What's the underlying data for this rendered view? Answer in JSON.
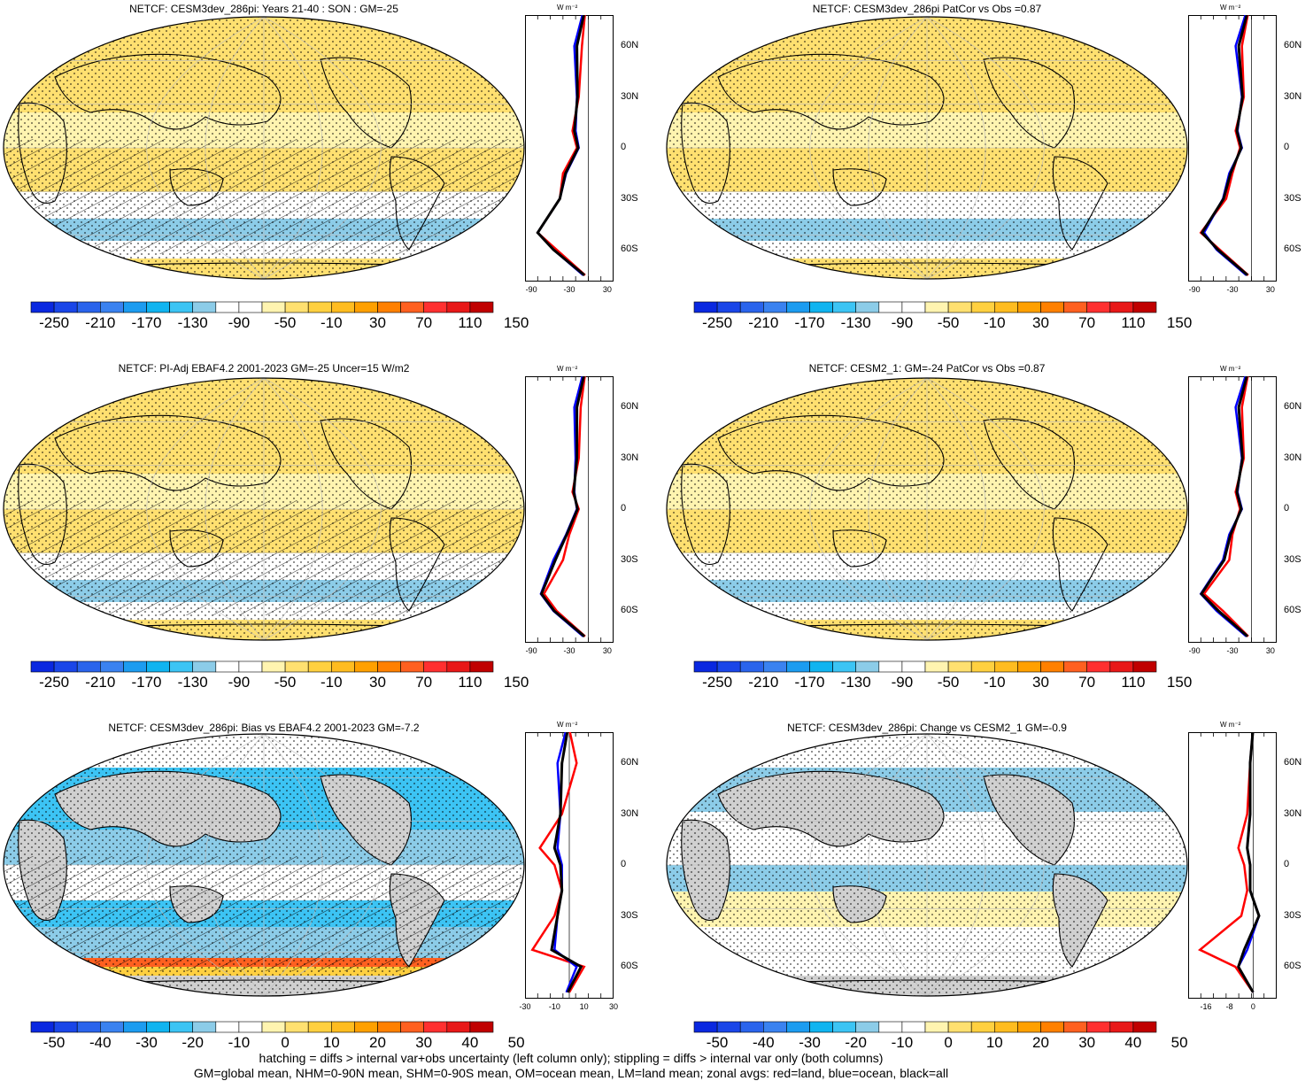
{
  "panels": [
    {
      "title": "NETCF: CESM3dev_286pi: Years 21-40 : SON : GM=-25",
      "cbar_labels": [
        "-250",
        "-210",
        "-170",
        "-130",
        "-90",
        "-50",
        "-10",
        "30",
        "70",
        "110",
        "150"
      ],
      "cbar_kind": "full",
      "zonal_x_labels": [
        "-90",
        "-30",
        "30"
      ],
      "zonal_unit": "W m⁻²",
      "lat_labels": [
        "60N",
        "30N",
        "0",
        "30S",
        "60S"
      ],
      "variant": "mean",
      "hatch": true
    },
    {
      "title": "NETCF: CESM3dev_286pi PatCor vs Obs =0.87",
      "cbar_labels": [
        "-250",
        "-210",
        "-170",
        "-130",
        "-90",
        "-50",
        "-10",
        "30",
        "70",
        "110",
        "150"
      ],
      "cbar_kind": "full",
      "zonal_x_labels": [
        "-90",
        "-30",
        "30"
      ],
      "zonal_unit": "W m⁻²",
      "lat_labels": [
        "60N",
        "30N",
        "0",
        "30S",
        "60S"
      ],
      "variant": "mean",
      "hatch": false
    },
    {
      "title": "NETCF: PI-Adj EBAF4.2 2001-2023 GM=-25 Uncer=15 W/m2",
      "cbar_labels": [
        "-250",
        "-210",
        "-170",
        "-130",
        "-90",
        "-50",
        "-10",
        "30",
        "70",
        "110",
        "150"
      ],
      "cbar_kind": "full",
      "zonal_x_labels": [
        "-90",
        "-30",
        "30"
      ],
      "zonal_unit": "W m⁻²",
      "lat_labels": [
        "60N",
        "30N",
        "0",
        "30S",
        "60S"
      ],
      "variant": "mean",
      "hatch": true
    },
    {
      "title": "NETCF: CESM2_1: GM=-24 PatCor vs Obs =0.87",
      "cbar_labels": [
        "-250",
        "-210",
        "-170",
        "-130",
        "-90",
        "-50",
        "-10",
        "30",
        "70",
        "110",
        "150"
      ],
      "cbar_kind": "full",
      "zonal_x_labels": [
        "-90",
        "-30",
        "30"
      ],
      "zonal_unit": "W m⁻²",
      "lat_labels": [
        "60N",
        "30N",
        "0",
        "30S",
        "60S"
      ],
      "variant": "mean",
      "hatch": false
    },
    {
      "title": "NETCF: CESM3dev_286pi: Bias vs EBAF4.2 2001-2023  GM=-7.2",
      "cbar_labels": [
        "-50",
        "-40",
        "-30",
        "-20",
        "-10",
        "0",
        "10",
        "20",
        "30",
        "40",
        "50"
      ],
      "cbar_kind": "diff",
      "zonal_x_labels": [
        "-30",
        "-10",
        "10",
        "30"
      ],
      "zonal_unit": "W m⁻²",
      "lat_labels": [
        "60N",
        "30N",
        "0",
        "30S",
        "60S"
      ],
      "variant": "bias",
      "hatch": true
    },
    {
      "title": "NETCF: CESM3dev_286pi: Change vs CESM2_1 GM=-0.9",
      "cbar_labels": [
        "-50",
        "-40",
        "-30",
        "-20",
        "-10",
        "0",
        "10",
        "20",
        "30",
        "40",
        "50"
      ],
      "cbar_kind": "diff",
      "zonal_x_labels": [
        "-16",
        "-8",
        "0"
      ],
      "zonal_unit": "W m⁻²",
      "lat_labels": [
        "60N",
        "30N",
        "0",
        "30S",
        "60S"
      ],
      "variant": "change",
      "hatch": false
    }
  ],
  "colors": {
    "full": [
      "#0a28e0",
      "#1a46e8",
      "#2a64ec",
      "#3a82f0",
      "#1c9cf0",
      "#10b4f0",
      "#3cc4f4",
      "#8ccce8",
      "#ffffff",
      "#ffffff",
      "#fff4b0",
      "#ffe070",
      "#ffd040",
      "#ffbc20",
      "#ffa000",
      "#ff8000",
      "#ff6020",
      "#ff3030",
      "#e81818",
      "#c00000"
    ],
    "diff": [
      "#0a28e0",
      "#1a46e8",
      "#2a64ec",
      "#3a82f0",
      "#1c9cf0",
      "#10b4f0",
      "#3cc4f4",
      "#8ccce8",
      "#ffffff",
      "#ffffff",
      "#fff4b0",
      "#ffe070",
      "#ffd040",
      "#ffbc20",
      "#ffa000",
      "#ff8000",
      "#ff6020",
      "#ff3030",
      "#e81818",
      "#c00000"
    ],
    "land_grey": "#d0d0d0",
    "zonal_red": "#ff0000",
    "zonal_blue": "#0000ff",
    "zonal_black": "#000000"
  },
  "chart_data": [
    {
      "type": "heatmap",
      "title": "NETCF: CESM3dev_286pi: Years 21-40 : SON : GM=-25",
      "colorbar": [
        -250,
        -210,
        -170,
        -130,
        -90,
        -50,
        -10,
        30,
        70,
        110,
        150
      ],
      "zonal": {
        "lat": [
          80,
          60,
          30,
          10,
          0,
          -15,
          -30,
          -50,
          -60,
          -75
        ],
        "land": [
          -5,
          -10,
          -15,
          -25,
          -18,
          -40,
          -45,
          -80,
          -50,
          -5
        ],
        "ocean": [
          -8,
          -22,
          -18,
          -20,
          -15,
          -35,
          -45,
          -80,
          -55,
          -8
        ],
        "all": [
          -6,
          -18,
          -17,
          -22,
          -16,
          -36,
          -45,
          -80,
          -55,
          -6
        ]
      }
    },
    {
      "type": "heatmap",
      "title": "NETCF: CESM3dev_286pi PatCor vs Obs =0.87",
      "colorbar": [
        -250,
        -210,
        -170,
        -130,
        -90,
        -50,
        -10,
        30,
        70,
        110,
        150
      ],
      "zonal": {
        "lat": [
          80,
          60,
          30,
          10,
          0,
          -15,
          -30,
          -50,
          -60,
          -75
        ],
        "land": [
          -5,
          -15,
          -12,
          -25,
          -18,
          -30,
          -40,
          -80,
          -50,
          -5
        ],
        "ocean": [
          -8,
          -25,
          -15,
          -22,
          -15,
          -35,
          -45,
          -75,
          -55,
          -8
        ],
        "all": [
          -6,
          -20,
          -14,
          -23,
          -16,
          -33,
          -44,
          -78,
          -53,
          -6
        ]
      }
    },
    {
      "type": "heatmap",
      "title": "NETCF: PI-Adj EBAF4.2 2001-2023 GM=-25 Uncer=15 W/m2",
      "colorbar": [
        -250,
        -210,
        -170,
        -130,
        -90,
        -50,
        -10,
        30,
        70,
        110,
        150
      ],
      "zonal": {
        "lat": [
          80,
          60,
          30,
          10,
          0,
          -15,
          -30,
          -50,
          -60,
          -75
        ],
        "land": [
          -5,
          -12,
          -15,
          -25,
          -15,
          -30,
          -40,
          -70,
          -50,
          -5
        ],
        "ocean": [
          -8,
          -22,
          -20,
          -22,
          -18,
          -35,
          -55,
          -75,
          -55,
          -8
        ],
        "all": [
          -6,
          -18,
          -18,
          -23,
          -17,
          -34,
          -52,
          -74,
          -54,
          -6
        ]
      }
    },
    {
      "type": "heatmap",
      "title": "NETCF: CESM2_1: GM=-24 PatCor vs Obs =0.87",
      "colorbar": [
        -250,
        -210,
        -170,
        -130,
        -90,
        -50,
        -10,
        30,
        70,
        110,
        150
      ],
      "zonal": {
        "lat": [
          80,
          60,
          30,
          10,
          0,
          -15,
          -30,
          -50,
          -60,
          -75
        ],
        "land": [
          -5,
          -15,
          -12,
          -25,
          -18,
          -30,
          -35,
          -75,
          -45,
          -5
        ],
        "ocean": [
          -8,
          -25,
          -15,
          -22,
          -15,
          -35,
          -45,
          -80,
          -55,
          -8
        ],
        "all": [
          -6,
          -20,
          -14,
          -23,
          -16,
          -33,
          -43,
          -79,
          -52,
          -6
        ]
      }
    },
    {
      "type": "heatmap",
      "title": "NETCF: CESM3dev_286pi: Bias vs EBAF4.2 2001-2023  GM=-7.2",
      "colorbar": [
        -50,
        -40,
        -30,
        -20,
        -10,
        0,
        10,
        20,
        30,
        40,
        50
      ],
      "zonal": {
        "lat": [
          80,
          60,
          30,
          10,
          0,
          -15,
          -30,
          -50,
          -60,
          -75
        ],
        "land": [
          0,
          5,
          -5,
          -20,
          -10,
          -5,
          -10,
          -25,
          10,
          0
        ],
        "ocean": [
          -2,
          -8,
          -6,
          -8,
          -5,
          -5,
          -8,
          -10,
          5,
          -2
        ],
        "all": [
          -1,
          -5,
          -6,
          -10,
          -6,
          -5,
          -8,
          -12,
          8,
          -1
        ]
      }
    },
    {
      "type": "heatmap",
      "title": "NETCF: CESM3dev_286pi: Change vs CESM2_1 GM=-0.9",
      "colorbar": [
        -50,
        -40,
        -30,
        -20,
        -10,
        0,
        10,
        20,
        30,
        40,
        50
      ],
      "zonal": {
        "lat": [
          80,
          60,
          30,
          10,
          0,
          -15,
          -30,
          -50,
          -60,
          -75
        ],
        "land": [
          0,
          -1,
          -2,
          -5,
          -3,
          -2,
          -4,
          -18,
          -6,
          0
        ],
        "ocean": [
          0,
          -1,
          -1,
          -2,
          -1,
          -1,
          2,
          -2,
          -5,
          0
        ],
        "all": [
          0,
          -1,
          -1,
          -2,
          -1,
          -1,
          2,
          -3,
          -5,
          0
        ]
      }
    }
  ],
  "footer": {
    "line1": "hatching = diffs > internal var+obs uncertainty (left column only); stippling = diffs > internal var only (both columns)",
    "line2": "GM=global mean, NHM=0-90N mean, SHM=0-90S mean, OM=ocean mean, LM=land mean; zonal avgs: red=land, blue=ocean, black=all"
  }
}
